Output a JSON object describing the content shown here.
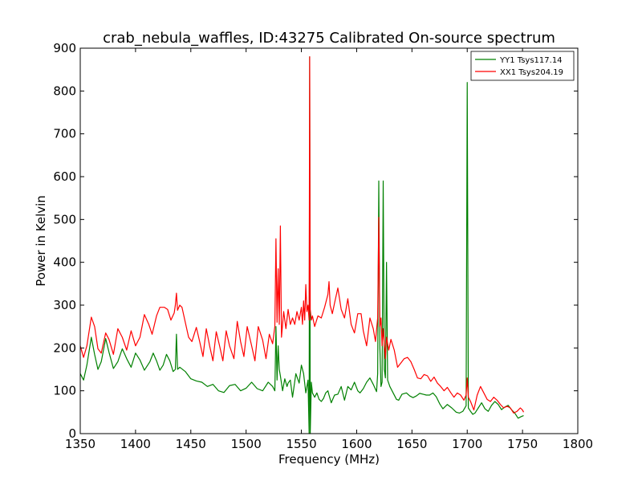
{
  "chart_data": {
    "type": "line",
    "title": "crab_nebula_waffles, ID:43275 Calibrated On-source spectrum",
    "xlabel": "Frequency (MHz)",
    "ylabel": "Power in Kelvin",
    "xlim": [
      1350,
      1800
    ],
    "ylim": [
      0,
      900
    ],
    "xticks": [
      1350,
      1400,
      1450,
      1500,
      1550,
      1600,
      1650,
      1700,
      1750,
      1800
    ],
    "yticks": [
      0,
      100,
      200,
      300,
      400,
      500,
      600,
      700,
      800,
      900
    ],
    "grid": false,
    "legend_position": "top-right",
    "series": [
      {
        "name": "YY1 Tsys117.14",
        "color": "#008000",
        "points": [
          [
            1350,
            140
          ],
          [
            1353,
            125
          ],
          [
            1356,
            160
          ],
          [
            1360,
            225
          ],
          [
            1363,
            185
          ],
          [
            1366,
            150
          ],
          [
            1369,
            168
          ],
          [
            1373,
            222
          ],
          [
            1376,
            190
          ],
          [
            1380,
            152
          ],
          [
            1384,
            168
          ],
          [
            1388,
            198
          ],
          [
            1392,
            175
          ],
          [
            1396,
            155
          ],
          [
            1400,
            188
          ],
          [
            1404,
            172
          ],
          [
            1408,
            148
          ],
          [
            1413,
            168
          ],
          [
            1416,
            188
          ],
          [
            1419,
            170
          ],
          [
            1422,
            148
          ],
          [
            1425,
            160
          ],
          [
            1428,
            185
          ],
          [
            1431,
            170
          ],
          [
            1434,
            145
          ],
          [
            1436,
            150
          ],
          [
            1437,
            232
          ],
          [
            1438,
            150
          ],
          [
            1440,
            155
          ],
          [
            1445,
            145
          ],
          [
            1450,
            128
          ],
          [
            1455,
            123
          ],
          [
            1460,
            120
          ],
          [
            1465,
            110
          ],
          [
            1470,
            115
          ],
          [
            1475,
            100
          ],
          [
            1480,
            96
          ],
          [
            1485,
            112
          ],
          [
            1490,
            115
          ],
          [
            1495,
            100
          ],
          [
            1500,
            106
          ],
          [
            1505,
            120
          ],
          [
            1510,
            105
          ],
          [
            1515,
            100
          ],
          [
            1520,
            120
          ],
          [
            1524,
            110
          ],
          [
            1526,
            100
          ],
          [
            1527,
            250
          ],
          [
            1528,
            125
          ],
          [
            1529,
            205
          ],
          [
            1530,
            150
          ],
          [
            1531,
            135
          ],
          [
            1533,
            100
          ],
          [
            1535,
            128
          ],
          [
            1537,
            110
          ],
          [
            1538,
            118
          ],
          [
            1540,
            125
          ],
          [
            1542,
            85
          ],
          [
            1545,
            140
          ],
          [
            1548,
            118
          ],
          [
            1550,
            160
          ],
          [
            1552,
            140
          ],
          [
            1554,
            95
          ],
          [
            1556,
            125
          ],
          [
            1557,
            0
          ],
          [
            1557.5,
            880
          ],
          [
            1558,
            0
          ],
          [
            1559,
            120
          ],
          [
            1560,
            95
          ],
          [
            1562,
            85
          ],
          [
            1564,
            95
          ],
          [
            1566,
            80
          ],
          [
            1568,
            75
          ],
          [
            1570,
            82
          ],
          [
            1572,
            95
          ],
          [
            1574,
            100
          ],
          [
            1575,
            90
          ],
          [
            1577,
            72
          ],
          [
            1580,
            90
          ],
          [
            1583,
            92
          ],
          [
            1586,
            110
          ],
          [
            1589,
            78
          ],
          [
            1592,
            110
          ],
          [
            1595,
            102
          ],
          [
            1598,
            120
          ],
          [
            1601,
            100
          ],
          [
            1603,
            95
          ],
          [
            1606,
            105
          ],
          [
            1609,
            120
          ],
          [
            1612,
            130
          ],
          [
            1615,
            115
          ],
          [
            1618,
            98
          ],
          [
            1619,
            140
          ],
          [
            1620,
            590
          ],
          [
            1621,
            200
          ],
          [
            1622,
            110
          ],
          [
            1623,
            120
          ],
          [
            1624,
            590
          ],
          [
            1625,
            150
          ],
          [
            1626,
            130
          ],
          [
            1627,
            400
          ],
          [
            1628,
            125
          ],
          [
            1630,
            110
          ],
          [
            1633,
            95
          ],
          [
            1636,
            80
          ],
          [
            1638,
            78
          ],
          [
            1641,
            92
          ],
          [
            1645,
            95
          ],
          [
            1648,
            88
          ],
          [
            1651,
            84
          ],
          [
            1654,
            88
          ],
          [
            1657,
            94
          ],
          [
            1660,
            92
          ],
          [
            1663,
            90
          ],
          [
            1666,
            90
          ],
          [
            1669,
            95
          ],
          [
            1672,
            86
          ],
          [
            1675,
            70
          ],
          [
            1678,
            58
          ],
          [
            1682,
            68
          ],
          [
            1686,
            60
          ],
          [
            1690,
            50
          ],
          [
            1693,
            48
          ],
          [
            1696,
            52
          ],
          [
            1699,
            65
          ],
          [
            1700,
            820
          ],
          [
            1701,
            60
          ],
          [
            1703,
            52
          ],
          [
            1705,
            45
          ],
          [
            1707,
            48
          ],
          [
            1710,
            60
          ],
          [
            1713,
            72
          ],
          [
            1716,
            58
          ],
          [
            1719,
            52
          ],
          [
            1722,
            66
          ],
          [
            1725,
            75
          ],
          [
            1728,
            68
          ],
          [
            1731,
            56
          ],
          [
            1734,
            62
          ],
          [
            1737,
            66
          ],
          [
            1740,
            56
          ],
          [
            1743,
            48
          ],
          [
            1746,
            36
          ],
          [
            1749,
            40
          ],
          [
            1751,
            42
          ]
        ]
      },
      {
        "name": "XX1 Tsys204.19",
        "color": "#ff0000",
        "points": [
          [
            1350,
            205
          ],
          [
            1353,
            178
          ],
          [
            1356,
            205
          ],
          [
            1360,
            272
          ],
          [
            1363,
            250
          ],
          [
            1366,
            198
          ],
          [
            1369,
            188
          ],
          [
            1373,
            235
          ],
          [
            1376,
            220
          ],
          [
            1380,
            185
          ],
          [
            1384,
            245
          ],
          [
            1388,
            225
          ],
          [
            1392,
            195
          ],
          [
            1396,
            240
          ],
          [
            1400,
            205
          ],
          [
            1404,
            225
          ],
          [
            1408,
            278
          ],
          [
            1412,
            255
          ],
          [
            1415,
            232
          ],
          [
            1419,
            275
          ],
          [
            1422,
            295
          ],
          [
            1426,
            295
          ],
          [
            1429,
            290
          ],
          [
            1432,
            265
          ],
          [
            1435,
            282
          ],
          [
            1436,
            300
          ],
          [
            1437,
            328
          ],
          [
            1438,
            288
          ],
          [
            1440,
            300
          ],
          [
            1442,
            295
          ],
          [
            1445,
            260
          ],
          [
            1448,
            225
          ],
          [
            1451,
            215
          ],
          [
            1455,
            248
          ],
          [
            1458,
            215
          ],
          [
            1461,
            180
          ],
          [
            1464,
            245
          ],
          [
            1467,
            205
          ],
          [
            1470,
            170
          ],
          [
            1473,
            238
          ],
          [
            1476,
            205
          ],
          [
            1479,
            170
          ],
          [
            1482,
            240
          ],
          [
            1485,
            205
          ],
          [
            1489,
            175
          ],
          [
            1492,
            262
          ],
          [
            1495,
            215
          ],
          [
            1498,
            180
          ],
          [
            1501,
            250
          ],
          [
            1505,
            205
          ],
          [
            1508,
            170
          ],
          [
            1511,
            250
          ],
          [
            1515,
            218
          ],
          [
            1518,
            175
          ],
          [
            1521,
            232
          ],
          [
            1524,
            210
          ],
          [
            1526,
            250
          ],
          [
            1527,
            455
          ],
          [
            1528,
            260
          ],
          [
            1529,
            385
          ],
          [
            1530,
            255
          ],
          [
            1531,
            485
          ],
          [
            1532,
            225
          ],
          [
            1534,
            285
          ],
          [
            1536,
            245
          ],
          [
            1538,
            290
          ],
          [
            1540,
            255
          ],
          [
            1542,
            270
          ],
          [
            1544,
            255
          ],
          [
            1546,
            285
          ],
          [
            1548,
            265
          ],
          [
            1550,
            295
          ],
          [
            1551,
            255
          ],
          [
            1552,
            310
          ],
          [
            1553,
            265
          ],
          [
            1554,
            348
          ],
          [
            1555,
            285
          ],
          [
            1556,
            300
          ],
          [
            1557,
            265
          ],
          [
            1557.5,
            880
          ],
          [
            1558,
            290
          ],
          [
            1559,
            265
          ],
          [
            1560,
            275
          ],
          [
            1562,
            250
          ],
          [
            1565,
            275
          ],
          [
            1568,
            270
          ],
          [
            1571,
            295
          ],
          [
            1574,
            325
          ],
          [
            1575,
            355
          ],
          [
            1576,
            300
          ],
          [
            1578,
            280
          ],
          [
            1580,
            305
          ],
          [
            1583,
            340
          ],
          [
            1586,
            290
          ],
          [
            1589,
            270
          ],
          [
            1592,
            315
          ],
          [
            1595,
            255
          ],
          [
            1598,
            235
          ],
          [
            1601,
            280
          ],
          [
            1604,
            280
          ],
          [
            1606,
            240
          ],
          [
            1609,
            205
          ],
          [
            1612,
            270
          ],
          [
            1615,
            245
          ],
          [
            1617,
            215
          ],
          [
            1619,
            270
          ],
          [
            1620,
            505
          ],
          [
            1621,
            250
          ],
          [
            1622,
            270
          ],
          [
            1623,
            205
          ],
          [
            1624,
            245
          ],
          [
            1626,
            175
          ],
          [
            1627,
            225
          ],
          [
            1629,
            195
          ],
          [
            1631,
            220
          ],
          [
            1634,
            195
          ],
          [
            1637,
            155
          ],
          [
            1640,
            165
          ],
          [
            1643,
            175
          ],
          [
            1646,
            178
          ],
          [
            1649,
            168
          ],
          [
            1652,
            150
          ],
          [
            1655,
            130
          ],
          [
            1658,
            128
          ],
          [
            1661,
            138
          ],
          [
            1664,
            135
          ],
          [
            1667,
            122
          ],
          [
            1670,
            132
          ],
          [
            1673,
            118
          ],
          [
            1676,
            110
          ],
          [
            1679,
            100
          ],
          [
            1682,
            108
          ],
          [
            1685,
            96
          ],
          [
            1688,
            85
          ],
          [
            1691,
            95
          ],
          [
            1694,
            90
          ],
          [
            1697,
            78
          ],
          [
            1699,
            90
          ],
          [
            1700,
            130
          ],
          [
            1701,
            85
          ],
          [
            1703,
            75
          ],
          [
            1706,
            55
          ],
          [
            1709,
            90
          ],
          [
            1712,
            110
          ],
          [
            1715,
            95
          ],
          [
            1718,
            80
          ],
          [
            1721,
            75
          ],
          [
            1724,
            85
          ],
          [
            1727,
            78
          ],
          [
            1730,
            68
          ],
          [
            1733,
            60
          ],
          [
            1736,
            64
          ],
          [
            1739,
            60
          ],
          [
            1742,
            48
          ],
          [
            1745,
            52
          ],
          [
            1748,
            60
          ],
          [
            1750,
            55
          ],
          [
            1751,
            50
          ]
        ]
      }
    ]
  }
}
